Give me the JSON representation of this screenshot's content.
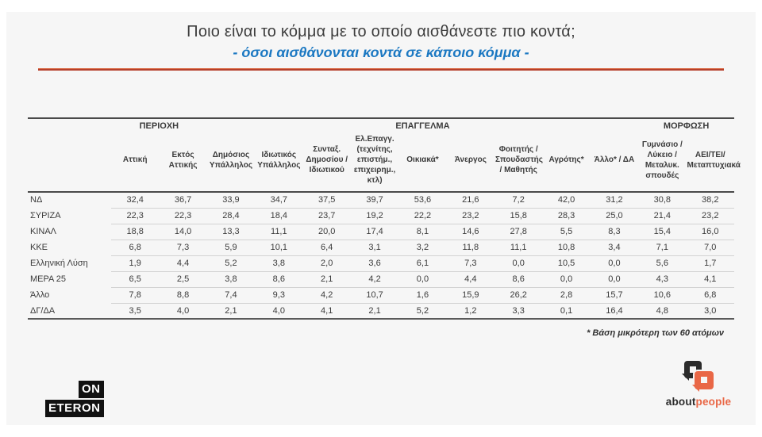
{
  "page": {
    "title": "Ποιο είναι το κόμμα με το οποίο αισθάνεστε πιο κοντά;",
    "subtitle": "- όσοι αισθάνονται κοντά σε κάποιο κόμμα -",
    "footnote": "* Βάση μικρότερη των 60 ατόμων"
  },
  "chart_data": {
    "type": "table",
    "title": "Ποιο είναι το κόμμα με το οποίο αισθάνεστε πιο κοντά;",
    "subtitle": "- όσοι αισθάνονται κοντά σε κάποιο κόμμα -",
    "value_unit": "percent",
    "decimal_separator": ",",
    "column_groups": [
      {
        "label": "ΠΕΡΙΟΧΗ",
        "span": 2
      },
      {
        "label": "ΕΠΑΓΓΕΛΜΑ",
        "span": 9
      },
      {
        "label": "ΜΟΡΦΩΣΗ",
        "span": 2
      }
    ],
    "columns": [
      "Αττική",
      "Εκτός Αττικής",
      "Δημόσιος Υπάλληλος",
      "Ιδιωτικός Υπάλληλος",
      "Συνταξ. Δημοσίου / Ιδιωτικού",
      "Ελ.Επαγγ. (τεχνίτης, επιστήμ., επιχειρημ., κτλ)",
      "Οικιακά*",
      "Άνεργος",
      "Φοιτητής / Σπουδαστής / Μαθητής",
      "Αγρότης*",
      "Άλλο* / ΔΑ",
      "Γυμνάσιο / Λύκειο / Μεταλυκ. σπουδές",
      "ΑΕΙ/ΤΕΙ/ Μεταπτυχιακά"
    ],
    "rows": [
      {
        "label": "ΝΔ",
        "values": [
          "32,4",
          "36,7",
          "33,9",
          "34,7",
          "37,5",
          "39,7",
          "53,6",
          "21,6",
          "7,2",
          "42,0",
          "31,2",
          "30,8",
          "38,2"
        ]
      },
      {
        "label": "ΣΥΡΙΖΑ",
        "values": [
          "22,3",
          "22,3",
          "28,4",
          "18,4",
          "23,7",
          "19,2",
          "22,2",
          "23,2",
          "15,8",
          "28,3",
          "25,0",
          "21,4",
          "23,2"
        ]
      },
      {
        "label": "ΚΙΝΑΛ",
        "values": [
          "18,8",
          "14,0",
          "13,3",
          "11,1",
          "20,0",
          "17,4",
          "8,1",
          "14,6",
          "27,8",
          "5,5",
          "8,3",
          "15,4",
          "16,0"
        ]
      },
      {
        "label": "ΚΚΕ",
        "values": [
          "6,8",
          "7,3",
          "5,9",
          "10,1",
          "6,4",
          "3,1",
          "3,2",
          "11,8",
          "11,1",
          "10,8",
          "3,4",
          "7,1",
          "7,0"
        ]
      },
      {
        "label": "Ελληνική Λύση",
        "values": [
          "1,9",
          "4,4",
          "5,2",
          "3,8",
          "2,0",
          "3,6",
          "6,1",
          "7,3",
          "0,0",
          "10,5",
          "0,0",
          "5,6",
          "1,7"
        ]
      },
      {
        "label": "ΜΕΡΑ 25",
        "values": [
          "6,5",
          "2,5",
          "3,8",
          "8,6",
          "2,1",
          "4,2",
          "0,0",
          "4,4",
          "8,6",
          "0,0",
          "0,0",
          "4,3",
          "4,1"
        ]
      },
      {
        "label": "Άλλο",
        "values": [
          "7,8",
          "8,8",
          "7,4",
          "9,3",
          "4,2",
          "10,7",
          "1,6",
          "15,9",
          "26,2",
          "2,8",
          "15,7",
          "10,6",
          "6,8"
        ]
      },
      {
        "label": "ΔΓ/ΔΑ",
        "values": [
          "3,5",
          "4,0",
          "2,1",
          "4,0",
          "4,1",
          "2,1",
          "5,2",
          "1,2",
          "3,3",
          "0,1",
          "16,4",
          "4,8",
          "3,0"
        ]
      }
    ],
    "footnote": "* Βάση μικρότερη των 60 ατόμων",
    "layout_hints": {
      "grid": "horizontal-only",
      "header_bold": true
    }
  },
  "branding": {
    "eteron": {
      "line1": "ON",
      "line2": "ETERON"
    },
    "aboutpeople": {
      "about": "about",
      "people": "people"
    }
  },
  "colors": {
    "subtitle_blue": "#1b78c2",
    "rule_red": "#b6402c",
    "aboutpeople_orange": "#e96746",
    "logo_black": "#121212",
    "slide_background": "#f6f6f6"
  }
}
